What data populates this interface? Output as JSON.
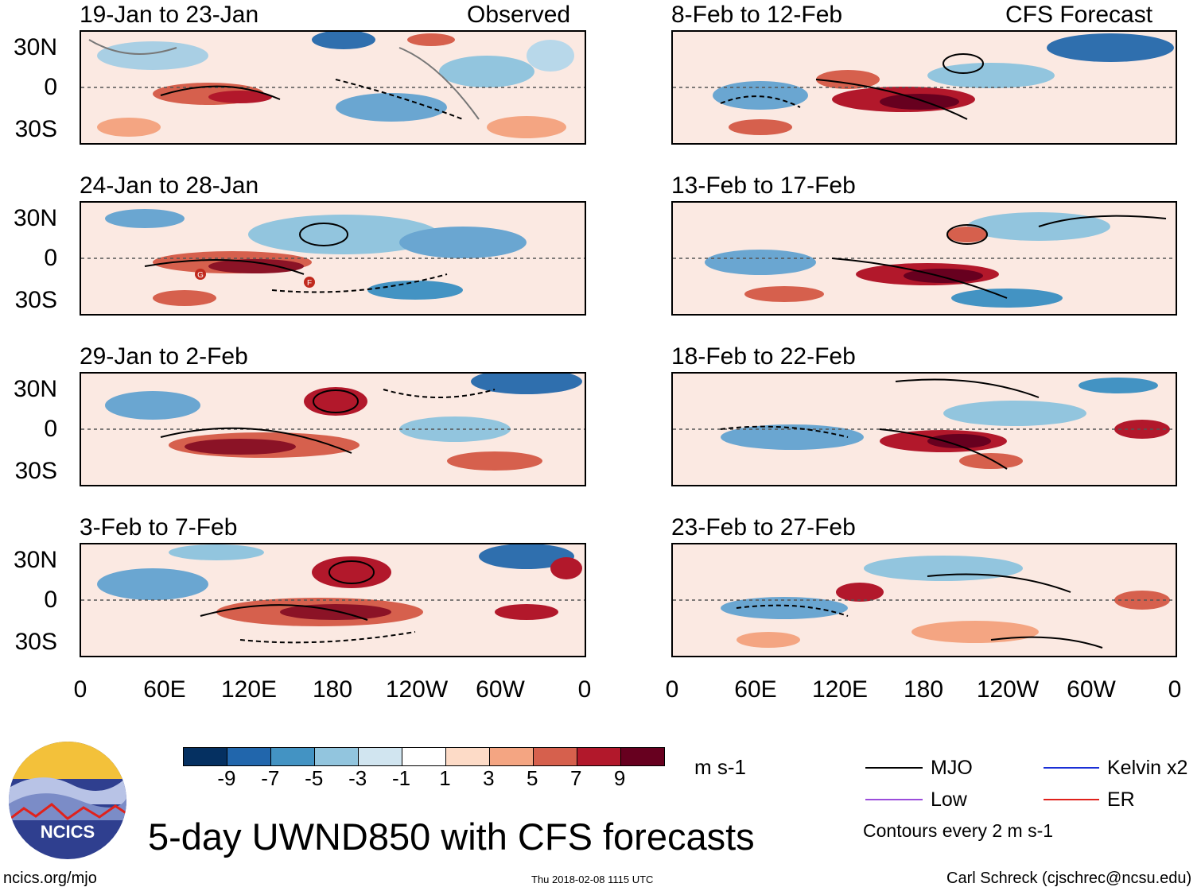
{
  "figure_title": "5-day UWND850 with CFS forecasts",
  "observed_label": "Observed",
  "forecast_label": "CFS Forecast",
  "panels_left": [
    {
      "title": "19-Jan to 23-Jan"
    },
    {
      "title": "24-Jan to 28-Jan"
    },
    {
      "title": "29-Jan to 2-Feb"
    },
    {
      "title": "3-Feb to 7-Feb"
    }
  ],
  "panels_right": [
    {
      "title": "8-Feb to 12-Feb"
    },
    {
      "title": "13-Feb to 17-Feb"
    },
    {
      "title": "18-Feb to 22-Feb"
    },
    {
      "title": "23-Feb to 27-Feb"
    }
  ],
  "lat_labels": [
    "30N",
    "0",
    "30S"
  ],
  "lon_labels": [
    "0",
    "60E",
    "120E",
    "180",
    "120W",
    "60W",
    "0"
  ],
  "markers": {
    "g": "G",
    "f": "F"
  },
  "colorbar": {
    "unit": "m s-1",
    "ticks": [
      "-9",
      "-7",
      "-5",
      "-3",
      "-1",
      "1",
      "3",
      "5",
      "7",
      "9"
    ],
    "colors": [
      "#053061",
      "#2166ac",
      "#4393c3",
      "#92c5de",
      "#d1e5f0",
      "#ffffff",
      "#fddbc7",
      "#f4a582",
      "#d6604d",
      "#b2182b",
      "#67001f"
    ]
  },
  "legend": {
    "mjo": "MJO",
    "kelvin": "Kelvin x2",
    "low": "Low",
    "er": "ER",
    "contour_note": "Contours every 2 m s-1",
    "colors": {
      "mjo": "#000000",
      "kelvin": "#1a2fd6",
      "low": "#9b4ddb",
      "er": "#e0221c"
    }
  },
  "logo_text": "NCICS",
  "footer": {
    "url": "ncics.org/mjo",
    "timestamp": "Thu 2018-02-08 1115 UTC",
    "author": "Carl Schreck (cjschrec@ncsu.edu)"
  }
}
